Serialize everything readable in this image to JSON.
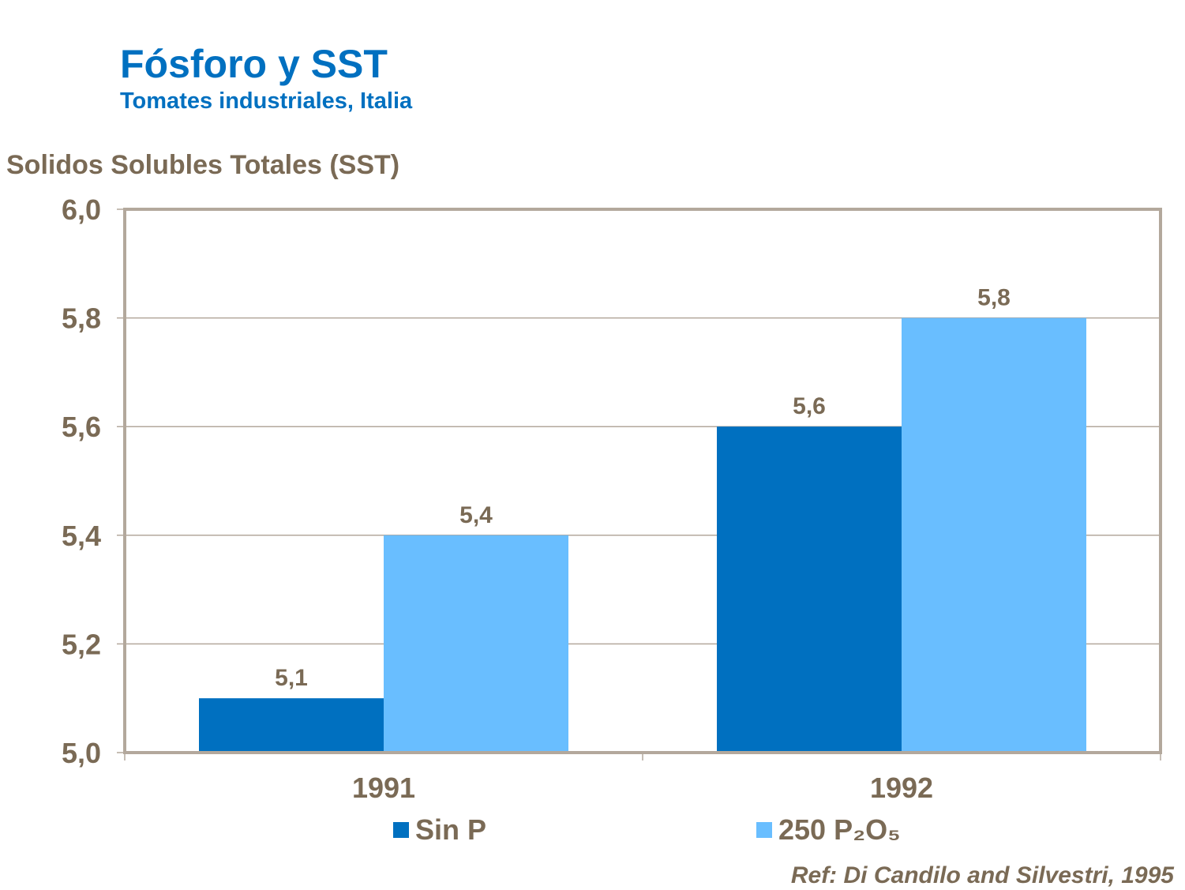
{
  "chart_data": {
    "type": "bar",
    "title": "Fósforo y SST",
    "subtitle": "Tomates industriales, Italia",
    "ylabel": "Solidos Solubles Totales (SST)",
    "xlabel": "",
    "categories": [
      "1991",
      "1992"
    ],
    "series": [
      {
        "name": "Sin P",
        "values": [
          5.1,
          5.6
        ],
        "color": "#0070C0"
      },
      {
        "name": "250 P₂O₅",
        "values": [
          5.4,
          5.8
        ],
        "color": "#69BEFF"
      }
    ],
    "ylim": [
      5.0,
      6.0
    ],
    "yticks": [
      "5,0",
      "5,2",
      "5,4",
      "5,6",
      "5,8",
      "6,0"
    ],
    "data_labels": [
      [
        "5,1",
        "5,6"
      ],
      [
        "5,4",
        "5,8"
      ]
    ],
    "grid": true,
    "legend_placement": "bottom",
    "annotation": "Ref: Di Candilo and Silvestri, 1995"
  }
}
